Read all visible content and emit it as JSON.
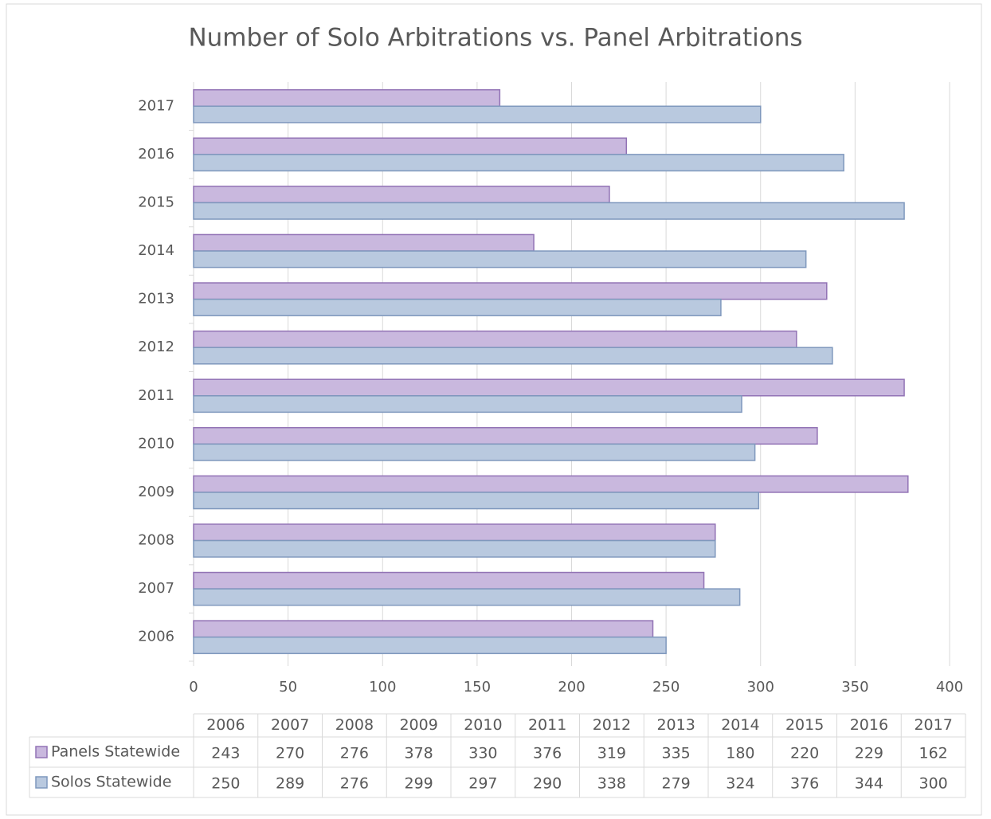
{
  "chart_data": {
    "type": "bar",
    "orientation": "horizontal",
    "title": "Number of Solo Arbitrations vs. Panel Arbitrations",
    "categories": [
      "2006",
      "2007",
      "2008",
      "2009",
      "2010",
      "2011",
      "2012",
      "2013",
      "2014",
      "2015",
      "2016",
      "2017"
    ],
    "series": [
      {
        "name": "Panels Statewide",
        "color": "#c9b8de",
        "values": [
          243,
          270,
          276,
          378,
          330,
          376,
          319,
          335,
          180,
          220,
          229,
          162
        ]
      },
      {
        "name": "Solos Statewide",
        "color": "#b9c9df",
        "values": [
          250,
          289,
          276,
          299,
          297,
          290,
          338,
          279,
          324,
          376,
          344,
          300
        ]
      }
    ],
    "xlim": [
      0,
      400
    ],
    "xticks": [
      0,
      50,
      100,
      150,
      200,
      250,
      300,
      350,
      400
    ],
    "grid": true,
    "data_table": true
  }
}
